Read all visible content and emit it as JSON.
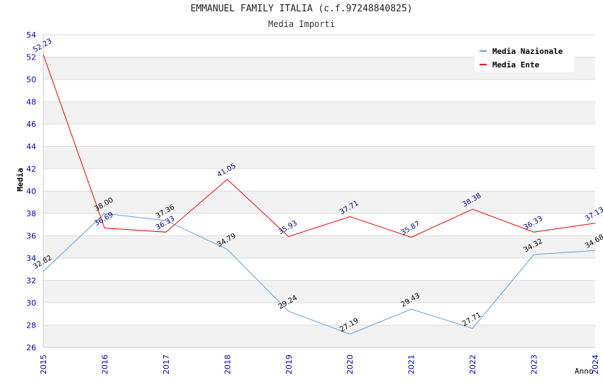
{
  "chart_data": {
    "type": "line",
    "title": "EMMANUEL FAMILY ITALIA (c.f.97248840825)",
    "subtitle": "Media Importi",
    "xlabel": "Anno",
    "ylabel": "Media",
    "ylim": [
      26,
      54
    ],
    "yticks": [
      26,
      28,
      30,
      32,
      34,
      36,
      38,
      40,
      42,
      44,
      46,
      48,
      50,
      52,
      54
    ],
    "categories": [
      "2015",
      "2016",
      "2017",
      "2018",
      "2019",
      "2020",
      "2021",
      "2022",
      "2023",
      "2024"
    ],
    "series": [
      {
        "name": "Media Nazionale",
        "color": "#5aa0e0",
        "label_color": "#000000",
        "values": [
          32.82,
          38.0,
          37.36,
          34.79,
          29.24,
          27.19,
          29.43,
          27.71,
          34.32,
          34.68
        ],
        "labels": [
          "32.82",
          "38.00",
          "37.36",
          "34.79",
          "29.24",
          "27.19",
          "29.43",
          "27.71",
          "34.32",
          "34.68"
        ]
      },
      {
        "name": "Media Ente",
        "color": "#ee0000",
        "label_color": "#000080",
        "values": [
          52.23,
          36.69,
          36.33,
          41.05,
          35.93,
          37.71,
          35.87,
          38.38,
          36.33,
          37.13
        ],
        "labels": [
          "52.23",
          "36.69",
          "36.33",
          "41.05",
          "35.93",
          "37.71",
          "35.87",
          "38.38",
          "36.33",
          "37.13"
        ]
      }
    ],
    "legend_position": "top-right",
    "grid": true
  }
}
